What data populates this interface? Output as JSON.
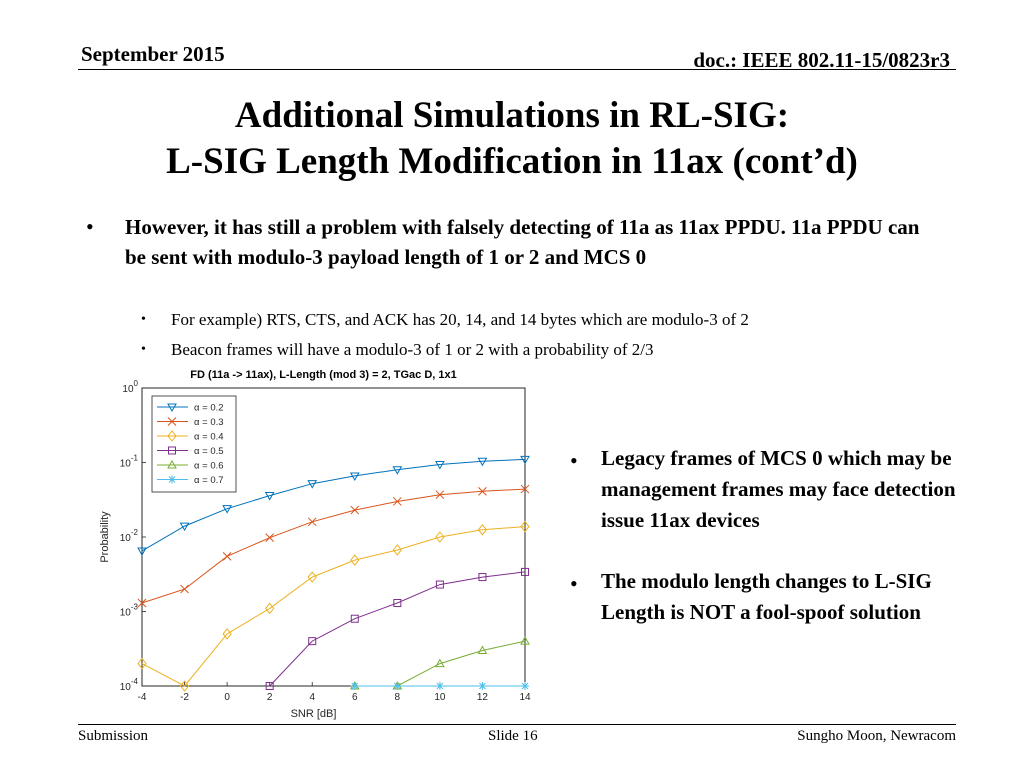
{
  "header": {
    "date": "September 2015",
    "doc_id": "doc.: IEEE 802.11-15/0823r3"
  },
  "title": {
    "line1": "Additional Simulations in RL-SIG:",
    "line2": "L-SIG Length Modification in 11ax (cont’d)"
  },
  "bullets": {
    "main": "However, it has still a problem with falsely detecting of 11a as 11ax PPDU. 11a PPDU can be sent with modulo-3 payload length of 1 or 2 and MCS 0",
    "sub1": "For example) RTS, CTS, and ACK has 20, 14, and 14 bytes which are modulo-3 of 2",
    "sub2": "Beacon frames will have a modulo-3 of 1 or 2 with a probability of 2/3",
    "right1": "Legacy frames of MCS 0 which may be management frames may face detection issue 11ax devices",
    "right2": "The modulo length changes to L-SIG Length is NOT a fool-spoof solution"
  },
  "footer": {
    "left": "Submission",
    "center": "Slide 16",
    "right": "Sungho Moon, Newracom"
  },
  "chart_data": {
    "type": "line",
    "title": "FD (11a -> 11ax), L-Length (mod 3) = 2, TGac D, 1x1",
    "xlabel": "SNR [dB]",
    "ylabel": "Probability",
    "y_scale": "log",
    "xlim": [
      -4,
      14
    ],
    "ylim": [
      0.0001,
      1
    ],
    "x_ticks": [
      -4,
      -2,
      0,
      2,
      4,
      6,
      8,
      10,
      12,
      14
    ],
    "y_ticks": [
      {
        "value": 1,
        "mantissa": "10",
        "exponent": "0"
      },
      {
        "value": 0.1,
        "mantissa": "10",
        "exponent": "-1"
      },
      {
        "value": 0.01,
        "mantissa": "10",
        "exponent": "-2"
      },
      {
        "value": 0.001,
        "mantissa": "10",
        "exponent": "-3"
      },
      {
        "value": 0.0001,
        "mantissa": "10",
        "exponent": "-4"
      }
    ],
    "grid": true,
    "legend_position": "top-left",
    "series": [
      {
        "name": "α = 0.2",
        "color": "#0072BD",
        "marker": "triangle-down",
        "points": [
          [
            -4,
            0.0065
          ],
          [
            -2,
            0.014
          ],
          [
            0,
            0.024
          ],
          [
            2,
            0.036
          ],
          [
            4,
            0.052
          ],
          [
            6,
            0.066
          ],
          [
            8,
            0.08
          ],
          [
            10,
            0.094
          ],
          [
            12,
            0.104
          ],
          [
            14,
            0.11
          ]
        ]
      },
      {
        "name": "α = 0.3",
        "color": "#D95319",
        "marker": "x",
        "points": [
          [
            -4,
            0.0013
          ],
          [
            -2,
            0.002
          ],
          [
            0,
            0.0055
          ],
          [
            2,
            0.0098
          ],
          [
            4,
            0.016
          ],
          [
            6,
            0.023
          ],
          [
            8,
            0.03
          ],
          [
            10,
            0.037
          ],
          [
            12,
            0.041
          ],
          [
            14,
            0.044
          ]
        ]
      },
      {
        "name": "α = 0.4",
        "color": "#EDB120",
        "marker": "diamond",
        "points": [
          [
            -4,
            0.0002
          ],
          [
            -2,
            0.0001
          ],
          [
            0,
            0.0005
          ],
          [
            2,
            0.0011
          ],
          [
            4,
            0.0029
          ],
          [
            6,
            0.0049
          ],
          [
            8,
            0.0067
          ],
          [
            10,
            0.01
          ],
          [
            12,
            0.0125
          ],
          [
            14,
            0.0138
          ]
        ]
      },
      {
        "name": "α = 0.5",
        "color": "#7E2F8E",
        "marker": "square",
        "points": [
          [
            2,
            0.0001
          ],
          [
            4,
            0.0004
          ],
          [
            6,
            0.0008
          ],
          [
            8,
            0.0013
          ],
          [
            10,
            0.0023
          ],
          [
            12,
            0.0029
          ],
          [
            14,
            0.0034
          ]
        ]
      },
      {
        "name": "α = 0.6",
        "color": "#77AC30",
        "marker": "triangle-up",
        "points": [
          [
            6,
            0.0001
          ],
          [
            8,
            0.0001
          ],
          [
            10,
            0.0002
          ],
          [
            12,
            0.0003
          ],
          [
            14,
            0.0004
          ]
        ]
      },
      {
        "name": "α = 0.7",
        "color": "#4DBEEE",
        "marker": "star",
        "points": [
          [
            6,
            0.0001
          ],
          [
            8,
            0.0001
          ],
          [
            10,
            0.0001
          ],
          [
            12,
            0.0001
          ],
          [
            14,
            0.0001
          ]
        ]
      }
    ]
  }
}
